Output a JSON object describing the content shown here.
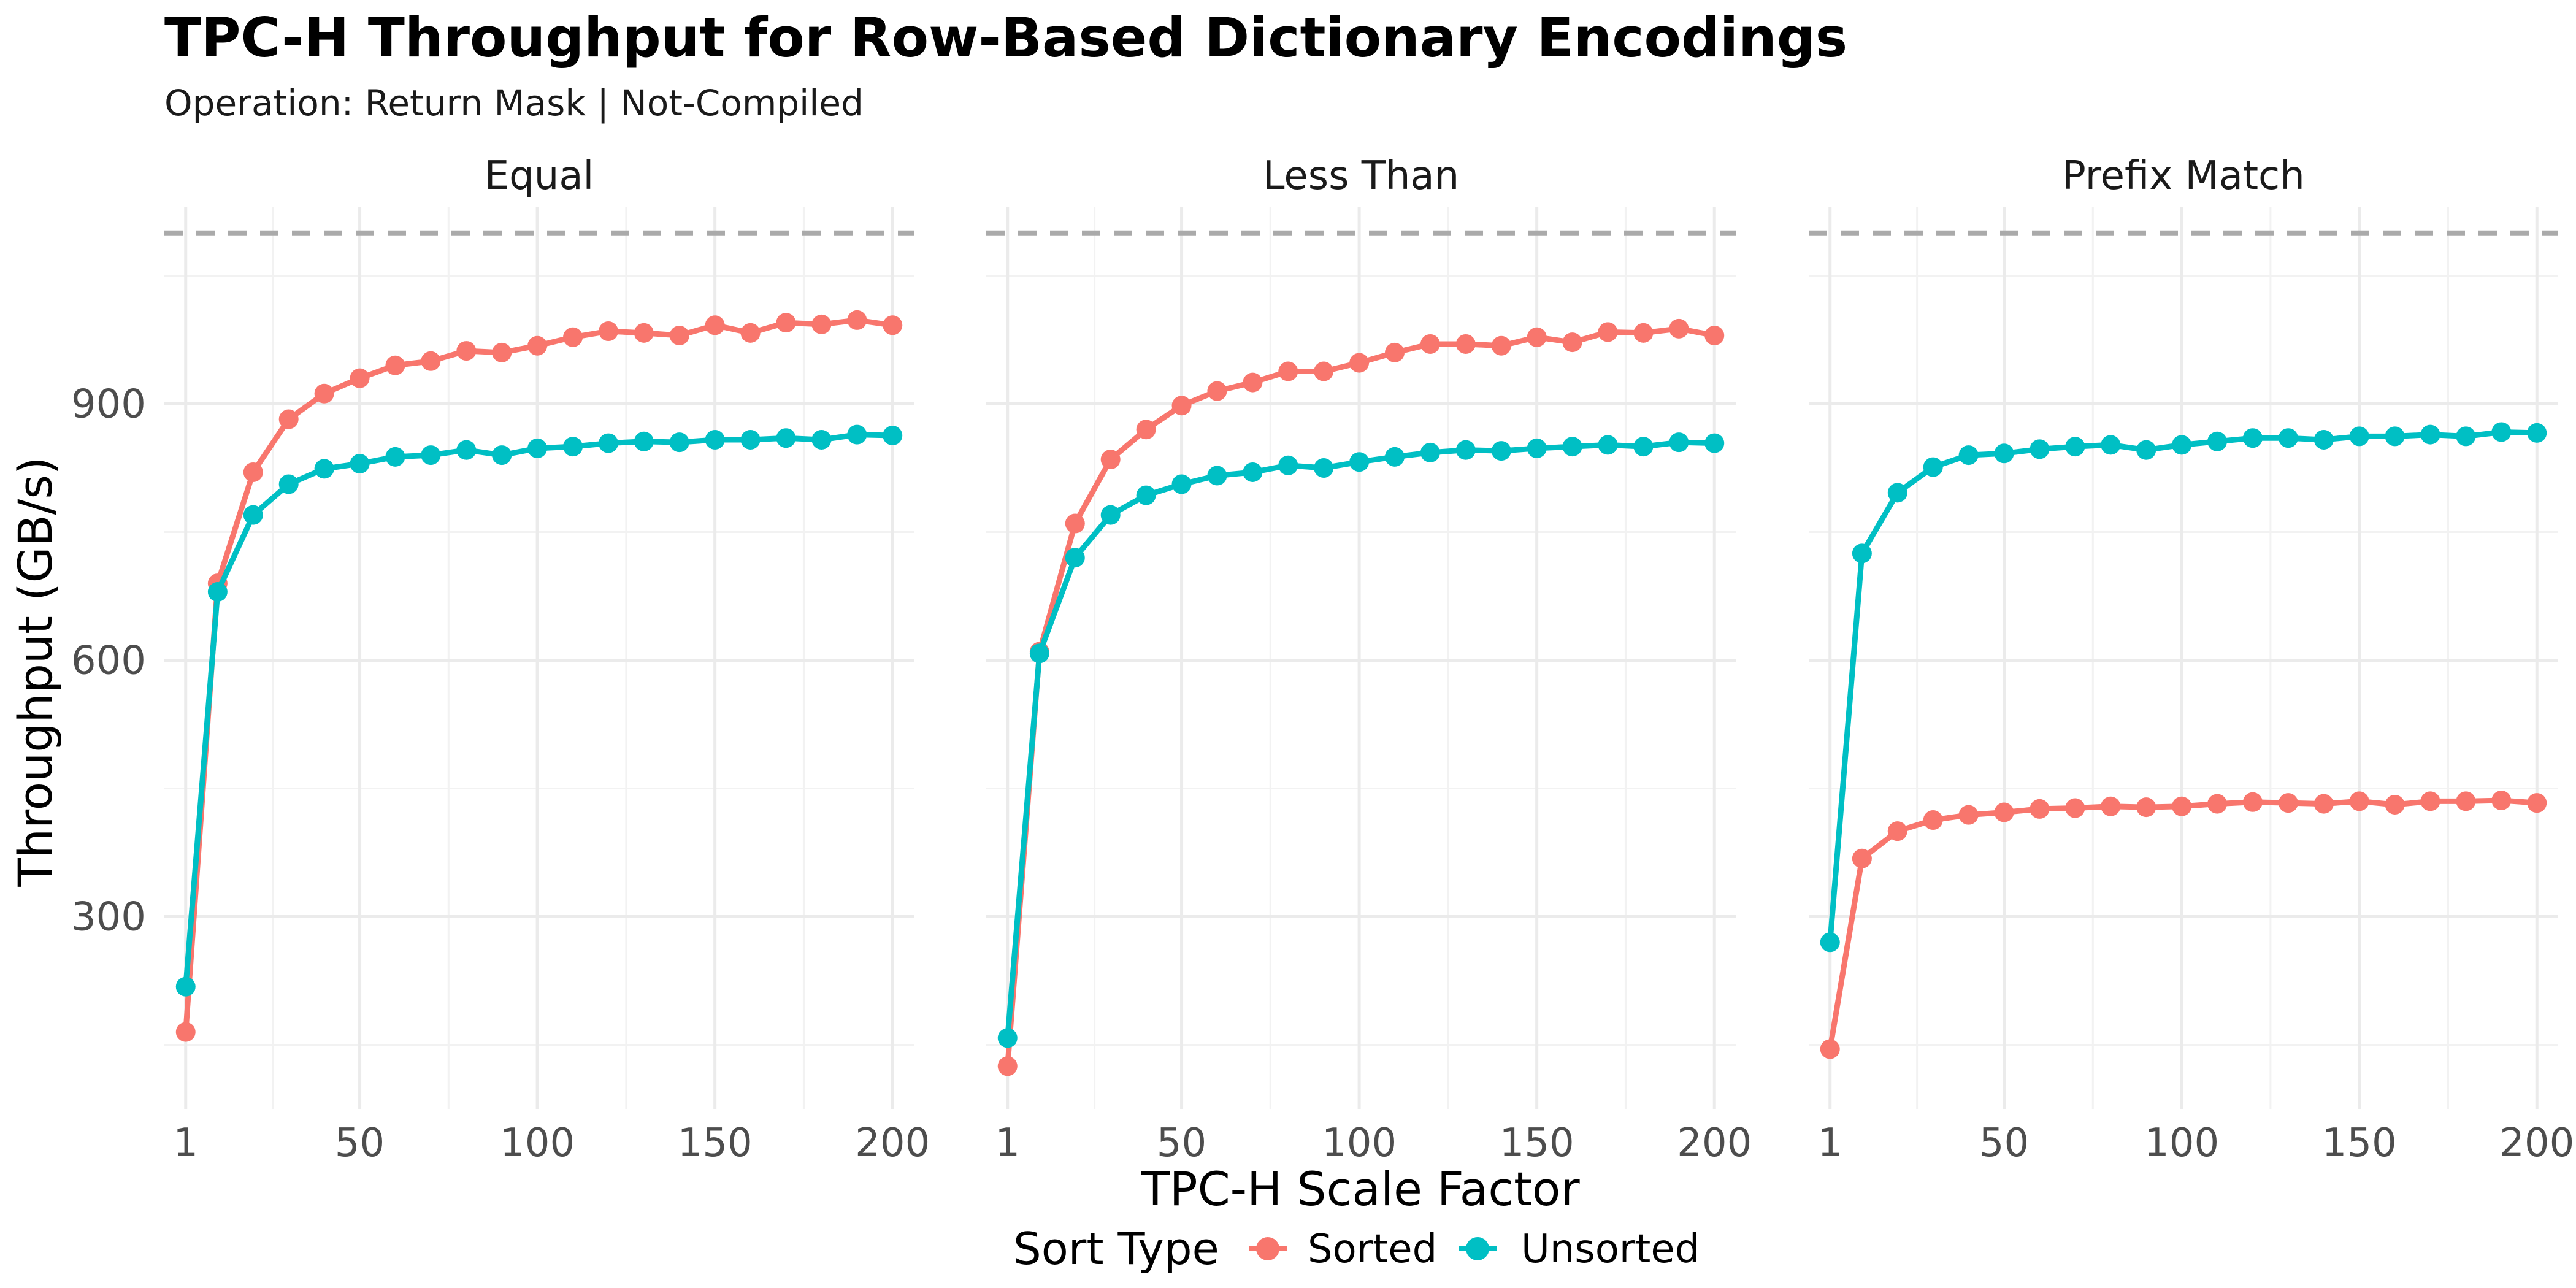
{
  "chart_data": {
    "type": "line",
    "title": "TPC-H Throughput for Row-Based Dictionary Encodings",
    "subtitle": "Operation: Return Mask | Not-Compiled",
    "xlabel": "TPC-H Scale Factor",
    "ylabel": "Throughput (GB/s)",
    "x_ticks": [
      1,
      50,
      100,
      150,
      200
    ],
    "y_ticks": [
      300,
      600,
      900
    ],
    "xlim": [
      -5,
      206
    ],
    "ylim": [
      75,
      1130
    ],
    "reference_line_y": 1100,
    "grid": true,
    "legend": {
      "title": "Sort Type",
      "position": "bottom",
      "entries": [
        {
          "name": "Sorted",
          "color": "#F8766D"
        },
        {
          "name": "Unsorted",
          "color": "#00BFC4"
        }
      ]
    },
    "x": [
      1,
      10,
      20,
      30,
      40,
      50,
      60,
      70,
      80,
      90,
      100,
      110,
      120,
      130,
      140,
      150,
      160,
      170,
      180,
      190,
      200
    ],
    "facets": [
      {
        "label": "Equal",
        "series": [
          {
            "name": "Sorted",
            "color": "#F8766D",
            "values": [
              165,
              690,
              820,
              882,
              912,
              930,
              945,
              950,
              962,
              960,
              968,
              978,
              985,
              983,
              980,
              992,
              983,
              995,
              993,
              998,
              992
            ]
          },
          {
            "name": "Unsorted",
            "color": "#00BFC4",
            "values": [
              218,
              680,
              770,
              806,
              824,
              830,
              838,
              840,
              846,
              840,
              848,
              850,
              854,
              856,
              855,
              858,
              858,
              860,
              858,
              864,
              863
            ]
          }
        ]
      },
      {
        "label": "Less Than",
        "series": [
          {
            "name": "Sorted",
            "color": "#F8766D",
            "values": [
              125,
              610,
              760,
              835,
              870,
              898,
              915,
              925,
              938,
              938,
              948,
              960,
              970,
              970,
              968,
              978,
              972,
              984,
              983,
              988,
              980
            ]
          },
          {
            "name": "Unsorted",
            "color": "#00BFC4",
            "values": [
              158,
              608,
              720,
              770,
              793,
              806,
              816,
              820,
              828,
              825,
              832,
              838,
              843,
              846,
              845,
              848,
              850,
              852,
              850,
              855,
              854
            ]
          }
        ]
      },
      {
        "label": "Prefix Match",
        "series": [
          {
            "name": "Sorted",
            "color": "#F8766D",
            "values": [
              145,
              368,
              400,
              413,
              419,
              422,
              426,
              427,
              429,
              428,
              429,
              432,
              434,
              433,
              432,
              435,
              431,
              435,
              435,
              436,
              433
            ]
          },
          {
            "name": "Unsorted",
            "color": "#00BFC4",
            "values": [
              270,
              725,
              796,
              826,
              840,
              842,
              847,
              850,
              852,
              846,
              852,
              856,
              860,
              860,
              858,
              862,
              862,
              864,
              862,
              867,
              866
            ]
          }
        ]
      }
    ]
  }
}
